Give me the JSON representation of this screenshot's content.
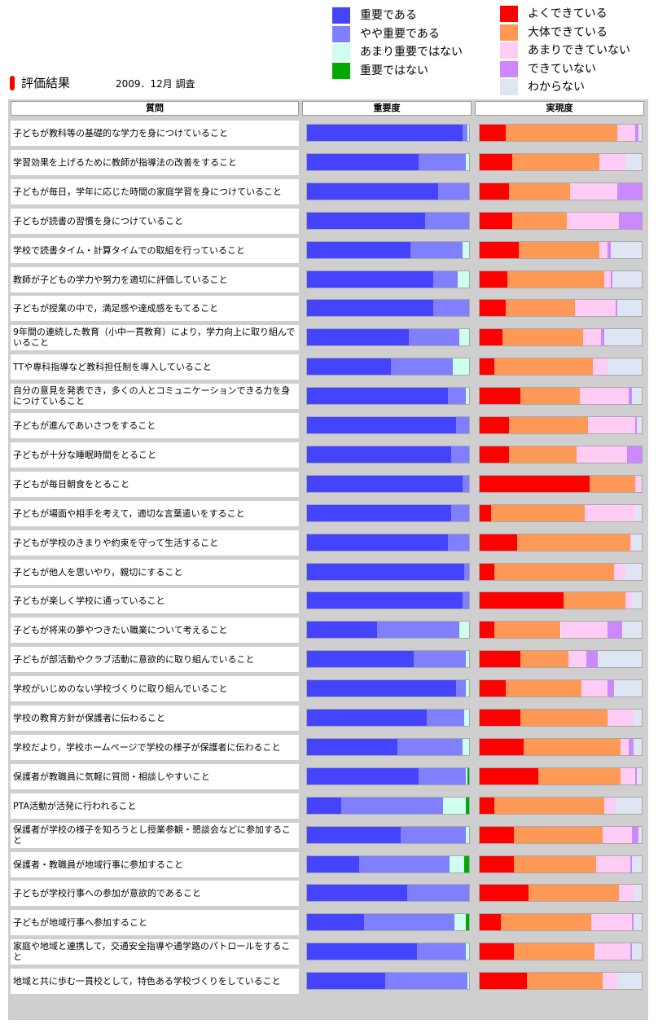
{
  "legend_importance": [
    {
      "label": "重要である",
      "color": "#4444ff"
    },
    {
      "label": "やや重要である",
      "color": "#8080ff"
    },
    {
      "label": "あまり重要ではない",
      "color": "#ccffee"
    },
    {
      "label": "重要ではない",
      "color": "#00aa00"
    }
  ],
  "legend_realization": [
    {
      "label": "よくできている",
      "color": "#ff0000"
    },
    {
      "label": "大体できている",
      "color": "#ff9955"
    },
    {
      "label": "あまりできていない",
      "color": "#ffccf5"
    },
    {
      "label": "できていない",
      "color": "#cc88ff"
    },
    {
      "label": "わからない",
      "color": "#dde6f2"
    }
  ],
  "title": "評価結果",
  "survey_date": "2009．12月 調査",
  "headers": {
    "question": "質問",
    "importance": "重要度",
    "realization": "実現度"
  },
  "chart_data": {
    "type": "bar",
    "stacked": true,
    "orientation": "horizontal",
    "title": "評価結果",
    "importance_series": [
      "重要である",
      "やや重要である",
      "あまり重要ではない",
      "重要ではない"
    ],
    "realization_series": [
      "よくできている",
      "大体できている",
      "あまりできていない",
      "できていない",
      "わからない"
    ],
    "rows": [
      {
        "q": "子どもが教科等の基礎的な学力を身につけていること",
        "imp": [
          96,
          3,
          1,
          0
        ],
        "rea": [
          16,
          69,
          11,
          2,
          2
        ]
      },
      {
        "q": "学習効果を上げるために教師が指導法の改善をすること",
        "imp": [
          69,
          29,
          2,
          0
        ],
        "rea": [
          20,
          54,
          16,
          0,
          10
        ]
      },
      {
        "q": "子どもが毎日，学年に応じた時間の家庭学習を身につけていること",
        "imp": [
          81,
          19,
          0,
          0
        ],
        "rea": [
          18,
          38,
          29,
          15,
          0
        ]
      },
      {
        "q": "子どもが読書の習慣を身につけていること",
        "imp": [
          73,
          27,
          0,
          0
        ],
        "rea": [
          20,
          34,
          32,
          14,
          0
        ]
      },
      {
        "q": "学校で読書タイム・計算タイムでの取組を行っていること",
        "imp": [
          64,
          32,
          4,
          0
        ],
        "rea": [
          24,
          50,
          5,
          2,
          19
        ]
      },
      {
        "q": "教師が子どもの学力や努力を適切に評価していること",
        "imp": [
          78,
          15,
          7,
          0
        ],
        "rea": [
          17,
          60,
          4,
          1,
          18
        ]
      },
      {
        "q": "子どもが授業の中で，満足感や達成感をもてること",
        "imp": [
          78,
          22,
          0,
          0
        ],
        "rea": [
          16,
          43,
          25,
          1,
          15
        ]
      },
      {
        "q": "9年間の連続した教育（小中一貫教育）により，学力向上に取り組んでいること",
        "imp": [
          63,
          31,
          6,
          0
        ],
        "rea": [
          14,
          50,
          11,
          2,
          23
        ]
      },
      {
        "q": "TTや専科指導など教科担任制を導入していること",
        "imp": [
          52,
          38,
          10,
          0
        ],
        "rea": [
          9,
          61,
          9,
          0,
          21
        ]
      },
      {
        "q": "自分の意見を発表でき，多くの人とコミュニケーションできる力を身につけていること",
        "imp": [
          87,
          11,
          2,
          0
        ],
        "rea": [
          25,
          37,
          30,
          2,
          6
        ]
      },
      {
        "q": "子どもが進んであいさつをすること",
        "imp": [
          92,
          8,
          0,
          0
        ],
        "rea": [
          18,
          49,
          29,
          1,
          3
        ]
      },
      {
        "q": "子どもが十分な睡眠時間をとること",
        "imp": [
          89,
          11,
          0,
          0
        ],
        "rea": [
          18,
          42,
          31,
          9,
          0
        ]
      },
      {
        "q": "子どもが毎日朝食をとること",
        "imp": [
          96,
          4,
          0,
          0
        ],
        "rea": [
          68,
          28,
          4,
          0,
          0
        ]
      },
      {
        "q": "子どもが場面や相手を考えて，適切な言葉遣いをすること",
        "imp": [
          89,
          11,
          0,
          0
        ],
        "rea": [
          7,
          58,
          31,
          0,
          4
        ]
      },
      {
        "q": "子どもが学校のきまりや約束を守って生活すること",
        "imp": [
          87,
          13,
          0,
          0
        ],
        "rea": [
          23,
          70,
          1,
          0,
          6
        ]
      },
      {
        "q": "子どもが他人を思いやり，親切にすること",
        "imp": [
          97,
          3,
          0,
          0
        ],
        "rea": [
          9,
          74,
          7,
          0,
          10
        ]
      },
      {
        "q": "子どもが楽しく学校に通っていること",
        "imp": [
          96,
          4,
          0,
          0
        ],
        "rea": [
          52,
          38,
          4,
          0,
          6
        ]
      },
      {
        "q": "子どもが将来の夢やつきたい職業について考えること",
        "imp": [
          43,
          51,
          6,
          0
        ],
        "rea": [
          9,
          41,
          29,
          9,
          12
        ]
      },
      {
        "q": "子どもが部活動やクラブ活動に意欲的に取り組んでいること",
        "imp": [
          66,
          32,
          2,
          0
        ],
        "rea": [
          25,
          30,
          11,
          7,
          27
        ]
      },
      {
        "q": "学校がいじめのない学校づくりに取り組んでいること",
        "imp": [
          92,
          6,
          2,
          0
        ],
        "rea": [
          16,
          47,
          16,
          4,
          17
        ]
      },
      {
        "q": "学校の教育方針が保護者に伝わること",
        "imp": [
          74,
          23,
          3,
          0
        ],
        "rea": [
          25,
          54,
          16,
          0,
          5
        ]
      },
      {
        "q": "学校だより，学校ホームページで学校の様子が保護者に伝わること",
        "imp": [
          56,
          40,
          4,
          0
        ],
        "rea": [
          27,
          60,
          5,
          3,
          5
        ]
      },
      {
        "q": "保護者が教職員に気軽に質問・相談しやすいこと",
        "imp": [
          69,
          29,
          1,
          1
        ],
        "rea": [
          36,
          51,
          9,
          1,
          3
        ]
      },
      {
        "q": "PTA活動が活発に行われること",
        "imp": [
          21,
          63,
          14,
          2
        ],
        "rea": [
          9,
          68,
          7,
          0,
          16
        ]
      },
      {
        "q": "保護者が学校の様子を知ろうとし授業参観・懇談会などに参加すること",
        "imp": [
          58,
          40,
          2,
          0
        ],
        "rea": [
          21,
          55,
          18,
          4,
          2
        ]
      },
      {
        "q": "保護者・教職員が地域行事に参加すること",
        "imp": [
          32,
          56,
          9,
          3
        ],
        "rea": [
          21,
          51,
          21,
          1,
          6
        ]
      },
      {
        "q": "子どもが学校行事への参加が意欲的であること",
        "imp": [
          62,
          38,
          0,
          0
        ],
        "rea": [
          30,
          56,
          9,
          0,
          5
        ]
      },
      {
        "q": "子どもが地域行事へ参加すること",
        "imp": [
          35,
          56,
          7,
          2
        ],
        "rea": [
          13,
          56,
          25,
          1,
          5
        ]
      },
      {
        "q": "家庭や地域と連携して，交通安全指導や通学路のパトロールをすること",
        "imp": [
          68,
          30,
          2,
          0
        ],
        "rea": [
          21,
          50,
          22,
          1,
          6
        ]
      },
      {
        "q": "地域と共に歩む一貫校として，特色ある学校づくりをしていること",
        "imp": [
          48,
          51,
          1,
          0
        ],
        "rea": [
          29,
          47,
          9,
          0,
          15
        ]
      }
    ]
  }
}
